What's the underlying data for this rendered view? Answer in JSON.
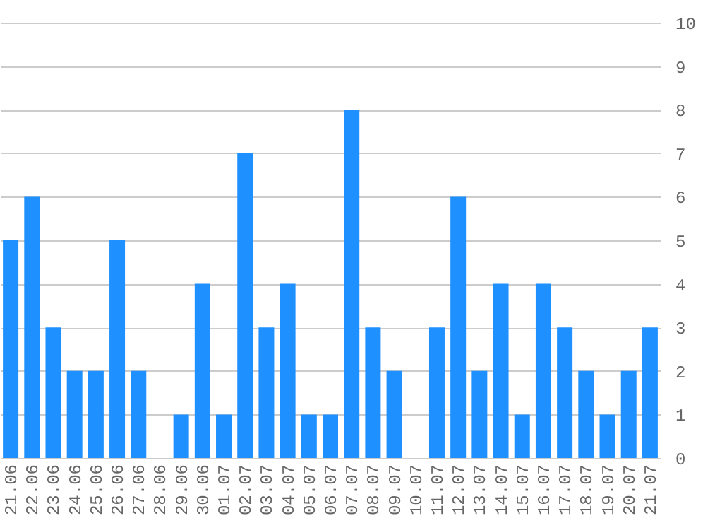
{
  "chart_data": {
    "type": "bar",
    "categories": [
      "21.06",
      "22.06",
      "23.06",
      "24.06",
      "25.06",
      "26.06",
      "27.06",
      "28.06",
      "29.06",
      "30.06",
      "01.07",
      "02.07",
      "03.07",
      "04.07",
      "05.07",
      "06.07",
      "07.07",
      "08.07",
      "09.07",
      "10.07",
      "11.07",
      "12.07",
      "13.07",
      "14.07",
      "15.07",
      "16.07",
      "17.07",
      "18.07",
      "19.07",
      "20.07",
      "21.07"
    ],
    "values": [
      5,
      6,
      3,
      2,
      2,
      5,
      2,
      0,
      1,
      4,
      1,
      7,
      3,
      4,
      1,
      1,
      8,
      3,
      2,
      0,
      3,
      6,
      2,
      4,
      1,
      4,
      3,
      2,
      1,
      2,
      3
    ],
    "color": "#1e90ff",
    "ylim": [
      0,
      10
    ],
    "yticks": [
      0,
      1,
      2,
      3,
      4,
      5,
      6,
      7,
      8,
      9,
      10
    ],
    "grid": "y"
  }
}
